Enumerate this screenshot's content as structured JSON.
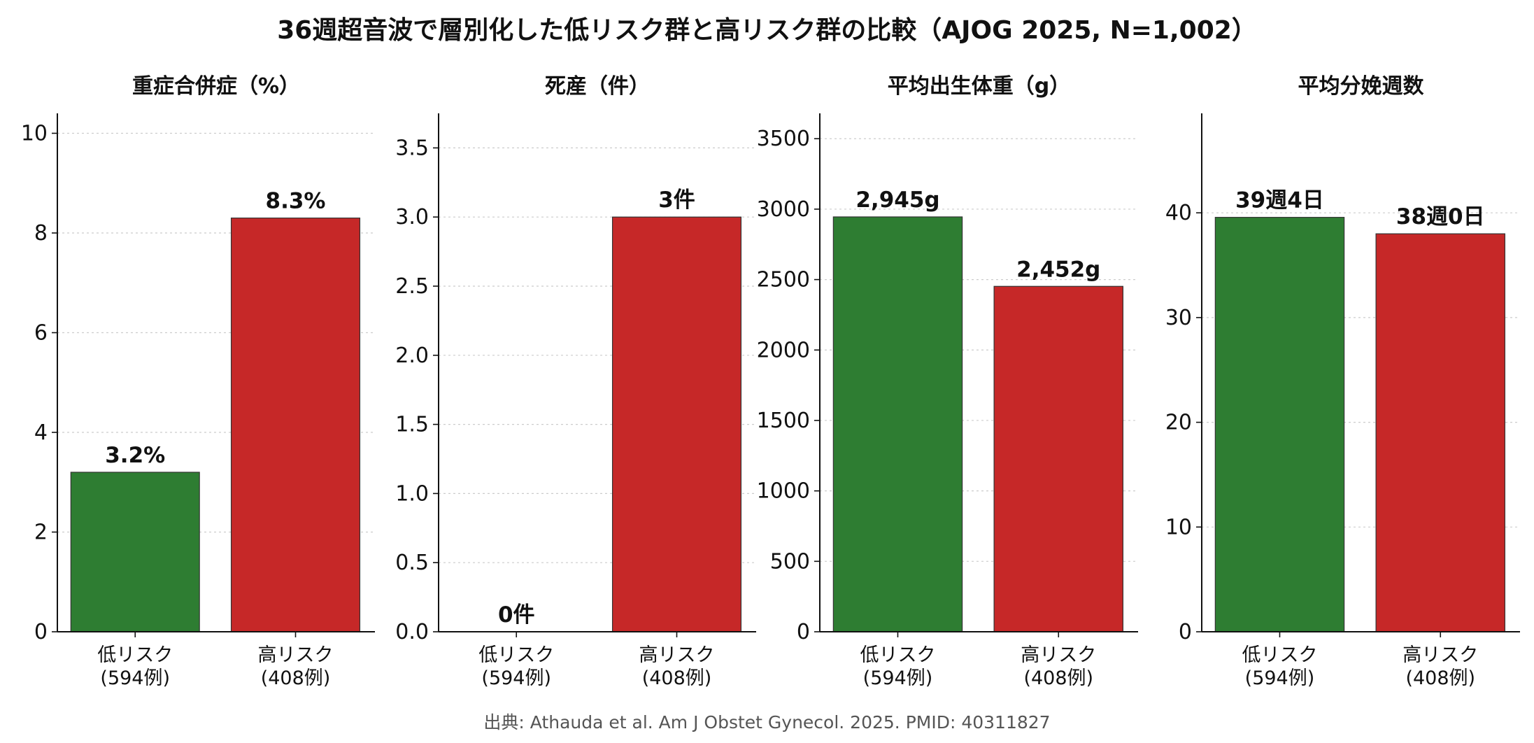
{
  "title": "36週超音波で層別化した低リスク群と高リスク群の比較（AJOG 2025, N=1,002）",
  "source": "出典: Athauda et al. Am J Obstet Gynecol. 2025. PMID: 40311827",
  "colors": {
    "low": "#2e7d32",
    "high": "#c62828",
    "grid": "#cccccc",
    "edge": "#333333"
  },
  "chart_data": [
    {
      "type": "bar",
      "title": "重症合併症（%）",
      "categories": [
        [
          "低リスク",
          "(594例)"
        ],
        [
          "高リスク",
          "(408例)"
        ]
      ],
      "values": [
        3.2,
        8.3
      ],
      "labels": [
        "3.2%",
        "8.3%"
      ],
      "ylim": [
        0,
        10.4
      ],
      "yticks": [
        0,
        2,
        4,
        6,
        8,
        10
      ],
      "ytick_labels": [
        "0",
        "2",
        "4",
        "6",
        "8",
        "10"
      ],
      "grid": true
    },
    {
      "type": "bar",
      "title": "死産（件）",
      "categories": [
        [
          "低リスク",
          "(594例)"
        ],
        [
          "高リスク",
          "(408例)"
        ]
      ],
      "values": [
        0,
        3
      ],
      "labels": [
        "0件",
        "3件"
      ],
      "ylim": [
        0,
        3.75
      ],
      "yticks": [
        0,
        0.5,
        1,
        1.5,
        2,
        2.5,
        3,
        3.5
      ],
      "ytick_labels": [
        "0.0",
        "0.5",
        "1.0",
        "1.5",
        "2.0",
        "2.5",
        "3.0",
        "3.5"
      ],
      "grid": true
    },
    {
      "type": "bar",
      "title": "平均出生体重（g）",
      "categories": [
        [
          "低リスク",
          "(594例)"
        ],
        [
          "高リスク",
          "(408例)"
        ]
      ],
      "values": [
        2945,
        2452
      ],
      "labels": [
        "2,945g",
        "2,452g"
      ],
      "ylim": [
        0,
        3680
      ],
      "yticks": [
        0,
        500,
        1000,
        1500,
        2000,
        2500,
        3000,
        3500
      ],
      "ytick_labels": [
        "0",
        "500",
        "1000",
        "1500",
        "2000",
        "2500",
        "3000",
        "3500"
      ],
      "grid": true
    },
    {
      "type": "bar",
      "title": "平均分娩週数",
      "categories": [
        [
          "低リスク",
          "(594例)"
        ],
        [
          "高リスク",
          "(408例)"
        ]
      ],
      "values": [
        39.57,
        38.0
      ],
      "labels": [
        "39週4日",
        "38週0日"
      ],
      "ylim": [
        0,
        49.5
      ],
      "yticks": [
        0,
        10,
        20,
        30,
        40
      ],
      "ytick_labels": [
        "0",
        "10",
        "20",
        "30",
        "40"
      ],
      "grid": true
    }
  ]
}
